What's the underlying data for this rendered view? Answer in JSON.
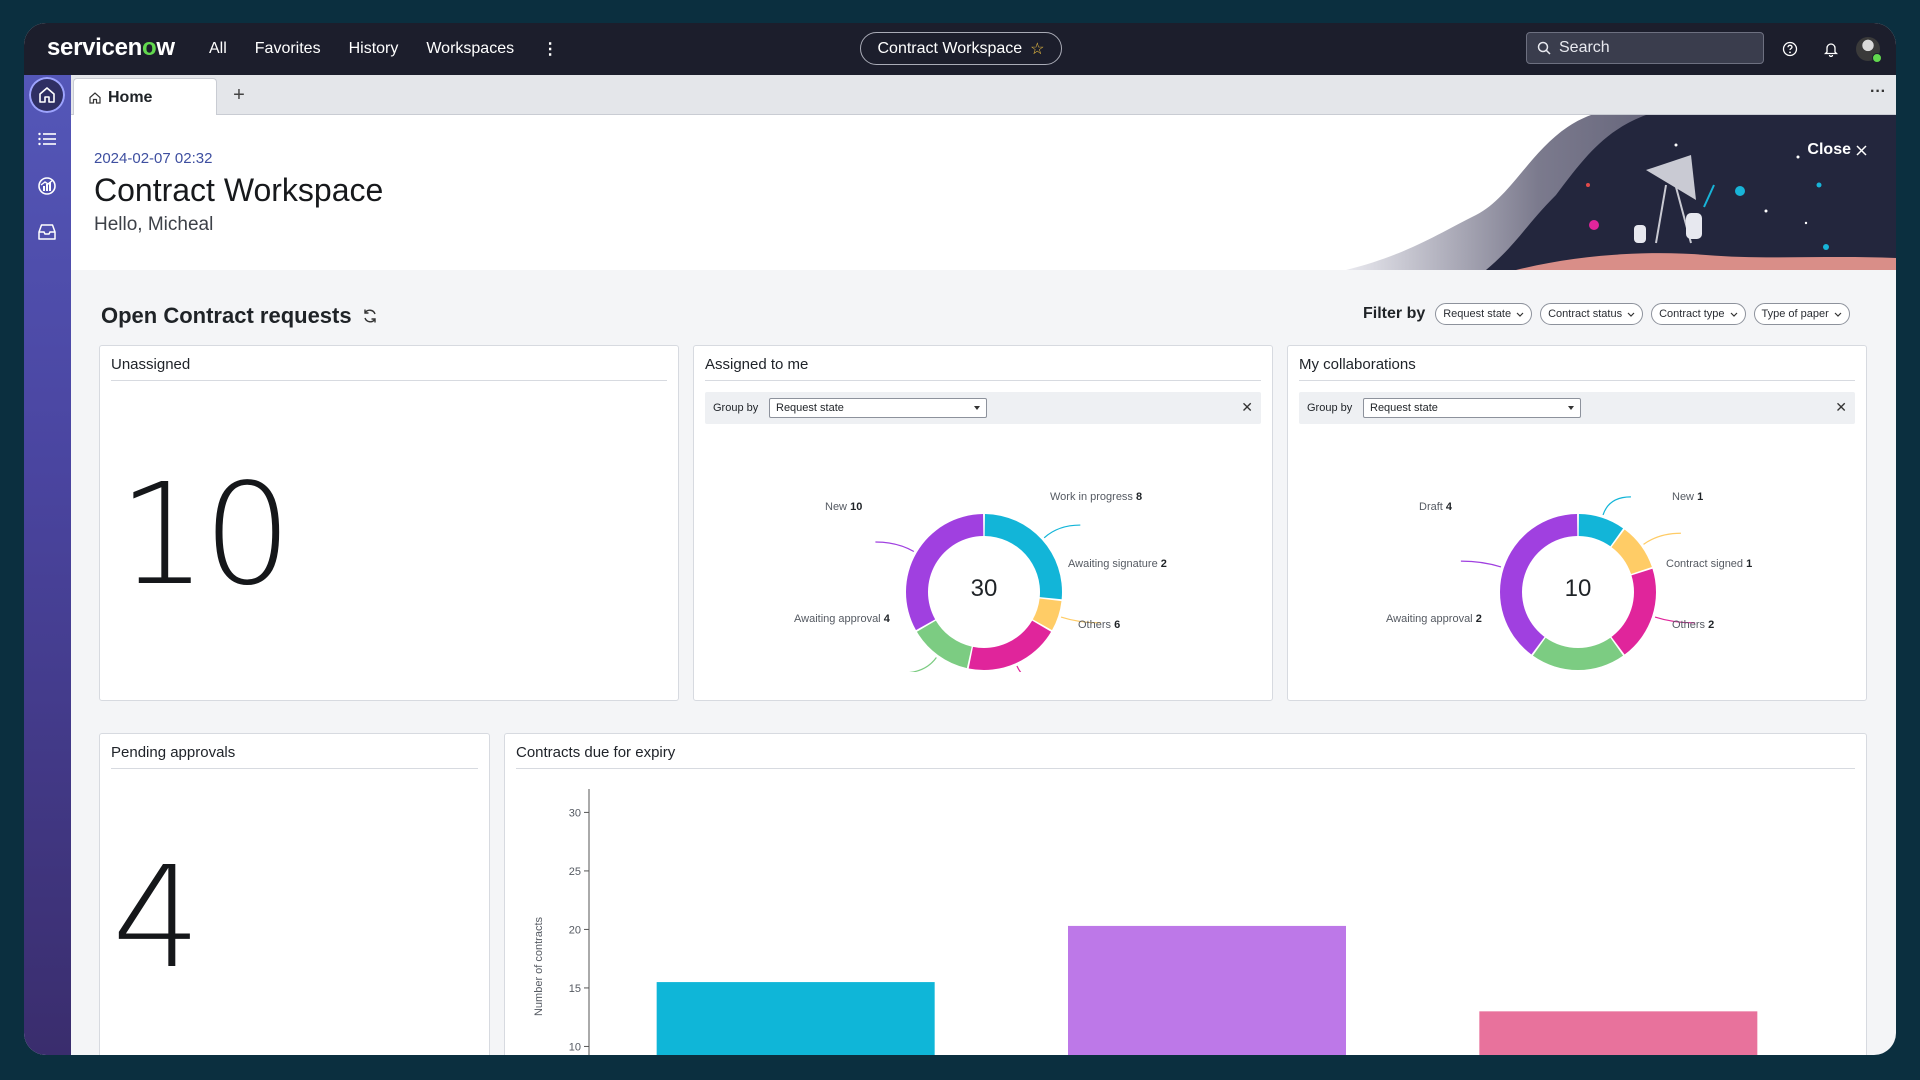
{
  "topbar": {
    "logo_a": "servicen",
    "logo_o": "o",
    "logo_b": "w",
    "nav": [
      "All",
      "Favorites",
      "History",
      "Workspaces"
    ],
    "nav_more": "⋮",
    "workspace_pill": "Contract Workspace",
    "search_placeholder": "Search"
  },
  "tabs": {
    "home": "Home",
    "add": "+",
    "more": "···"
  },
  "header": {
    "date": "2024-02-07 02:32",
    "title": "Contract Workspace",
    "greeting": "Hello, Micheal",
    "close": "Close"
  },
  "section": {
    "title": "Open Contract requests",
    "filter_label": "Filter by",
    "filters": [
      "Request state",
      "Contract status",
      "Contract type",
      "Type of paper"
    ]
  },
  "cards": {
    "unassigned": {
      "title": "Unassigned",
      "value": "10"
    },
    "assigned": {
      "title": "Assigned to me",
      "group_by_label": "Group by",
      "group_by_value": "Request state",
      "total": "30",
      "segments": [
        {
          "label": "Work in progress",
          "value": 8,
          "color": "#12b5d8"
        },
        {
          "label": "Awaiting signature",
          "value": 2,
          "color": "#ffcc66"
        },
        {
          "label": "Others",
          "value": 6,
          "color": "#e0259b"
        },
        {
          "label": "Awaiting approval",
          "value": 4,
          "color": "#7ccc82"
        },
        {
          "label": "New",
          "value": 10,
          "color": "#a040e0"
        }
      ]
    },
    "collab": {
      "title": "My collaborations",
      "group_by_label": "Group by",
      "group_by_value": "Request state",
      "total": "10",
      "segments": [
        {
          "label": "New",
          "value": 1,
          "color": "#12b5d8"
        },
        {
          "label": "Contract signed",
          "value": 1,
          "color": "#ffcc66"
        },
        {
          "label": "Others",
          "value": 2,
          "color": "#e0259b"
        },
        {
          "label": "Awaiting approval",
          "value": 2,
          "color": "#7ccc82"
        },
        {
          "label": "Draft",
          "value": 4,
          "color": "#a040e0"
        }
      ]
    },
    "pending": {
      "title": "Pending approvals",
      "value": "4"
    },
    "expiry": {
      "title": "Contracts due for expiry"
    }
  },
  "chart_data": {
    "type": "bar",
    "title": "Contracts due for expiry",
    "ylabel": "Number of contracts",
    "xlabel": "",
    "ticks": [
      10,
      15,
      20,
      25,
      30
    ],
    "ylim": [
      8.5,
      32
    ],
    "values": [
      15.5,
      20.3,
      13
    ],
    "colors": [
      "#0fb6d8",
      "#bd78e8",
      "#e8729c"
    ]
  }
}
